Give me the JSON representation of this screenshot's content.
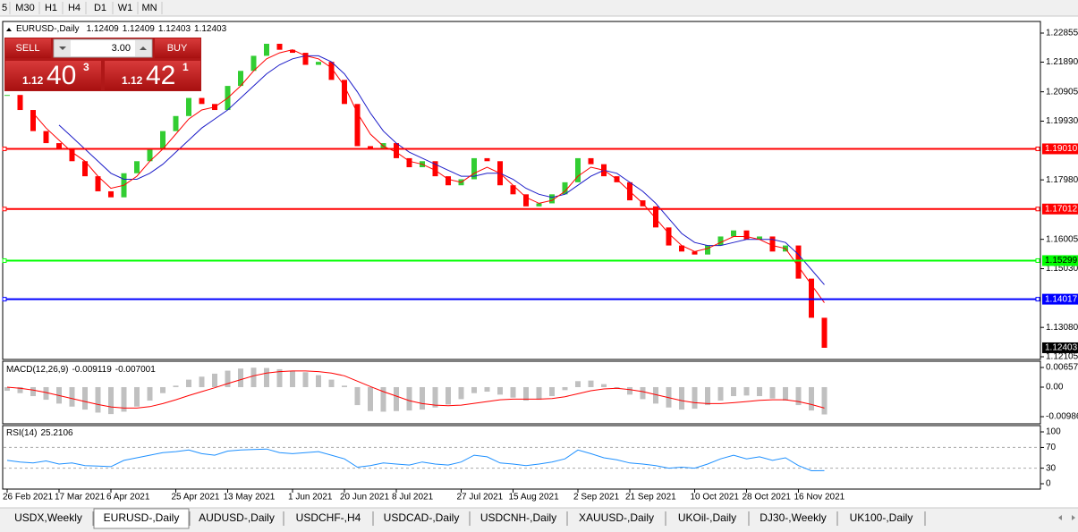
{
  "toolbar": {
    "timeframes": [
      "5",
      "M30",
      "H1",
      "H4",
      "D1",
      "W1",
      "MN"
    ]
  },
  "trade_panel": {
    "sell": "SELL",
    "buy": "BUY",
    "lot": "3.00",
    "bid": {
      "prefix": "1.12",
      "big": "40",
      "small": "3"
    },
    "ask": {
      "prefix": "1.12",
      "big": "42",
      "small": "1"
    }
  },
  "chart_data": [
    {
      "type": "candlestick",
      "symbol": "EURUSD-,Daily",
      "ohlc": [
        1.12409,
        1.12409,
        1.12403,
        1.12403
      ],
      "categories": [
        "26 Feb 2021",
        null,
        null,
        null,
        "17 Mar 2021",
        null,
        null,
        null,
        "6 Apr 2021",
        null,
        null,
        null,
        null,
        "25 Apr 2021",
        null,
        null,
        null,
        "13 May 2021",
        null,
        null,
        null,
        null,
        "1 Jun 2021",
        null,
        null,
        null,
        "20 Jun 2021",
        null,
        null,
        null,
        "8 Jul 2021",
        null,
        null,
        null,
        null,
        "27 Jul 2021",
        null,
        null,
        null,
        "15 Aug 2021",
        null,
        null,
        null,
        null,
        "2 Sep 2021",
        null,
        null,
        null,
        "21 Sep 2021",
        null,
        null,
        null,
        null,
        "10 Oct 2021",
        null,
        null,
        null,
        "28 Oct 2021",
        null,
        null,
        null,
        "16 Nov 2021",
        null,
        null
      ],
      "closes": [
        1.208,
        1.203,
        1.196,
        1.192,
        1.19,
        1.186,
        1.181,
        1.176,
        1.174,
        1.182,
        1.186,
        1.19,
        1.196,
        1.201,
        1.207,
        1.205,
        1.203,
        1.211,
        1.216,
        1.221,
        1.225,
        1.223,
        1.222,
        1.218,
        1.219,
        1.213,
        1.205,
        1.191,
        1.19,
        1.192,
        1.187,
        1.184,
        1.186,
        1.181,
        1.178,
        1.18,
        1.187,
        1.186,
        1.178,
        1.175,
        1.171,
        1.172,
        1.175,
        1.179,
        1.187,
        1.185,
        1.181,
        1.179,
        1.173,
        1.171,
        1.164,
        1.158,
        1.156,
        1.155,
        1.158,
        1.161,
        1.163,
        1.16,
        1.161,
        1.156,
        1.158,
        1.147,
        1.134,
        1.12403
      ],
      "up_color": "#32cd32",
      "down_color": "#ff0000",
      "ma_fast": {
        "color": "#ff0000",
        "values": [
          null,
          null,
          1.202,
          1.197,
          1.193,
          1.189,
          1.186,
          1.181,
          1.177,
          1.178,
          1.181,
          1.186,
          1.19,
          1.195,
          1.2,
          1.203,
          1.204,
          1.207,
          1.211,
          1.216,
          1.22,
          1.222,
          1.223,
          1.221,
          1.22,
          1.217,
          1.211,
          1.202,
          1.195,
          1.191,
          1.189,
          1.186,
          1.185,
          1.183,
          1.18,
          1.179,
          1.182,
          1.184,
          1.182,
          1.178,
          1.174,
          1.172,
          1.173,
          1.176,
          1.181,
          1.184,
          1.183,
          1.18,
          1.176,
          1.172,
          1.167,
          1.162,
          1.158,
          1.156,
          1.157,
          1.159,
          1.161,
          1.161,
          1.16,
          1.158,
          1.157,
          1.151,
          1.145,
          1.139
        ]
      },
      "ma_slow": {
        "color": "#1c1cc8",
        "values": [
          null,
          null,
          null,
          null,
          1.198,
          1.194,
          1.19,
          1.186,
          1.182,
          1.18,
          1.18,
          1.182,
          1.185,
          1.189,
          1.193,
          1.197,
          1.2,
          1.203,
          1.207,
          1.211,
          1.215,
          1.218,
          1.22,
          1.221,
          1.221,
          1.219,
          1.215,
          1.209,
          1.202,
          1.196,
          1.192,
          1.189,
          1.187,
          1.185,
          1.183,
          1.181,
          1.181,
          1.182,
          1.182,
          1.18,
          1.177,
          1.175,
          1.174,
          1.175,
          1.178,
          1.181,
          1.183,
          1.182,
          1.179,
          1.176,
          1.172,
          1.167,
          1.162,
          1.159,
          1.158,
          1.158,
          1.159,
          1.16,
          1.16,
          1.16,
          1.159,
          1.155,
          1.15,
          1.145
        ]
      },
      "levels": [
        {
          "value": 1.1901,
          "label": "1.19010",
          "color": "#ff0000"
        },
        {
          "value": 1.17012,
          "color": "#ff0000"
        },
        {
          "value": 1.15299,
          "color": "#00ff00"
        },
        {
          "value": 1.14017,
          "color": "#0000ff"
        }
      ],
      "ylim": [
        1.12016,
        1.23241
      ],
      "yticks": [
        1.22855,
        {
          "value": 1.2189,
          "label": "1.21890"
        },
        1.20905,
        {
          "value": 1.1993,
          "label": "1.19930"
        },
        {
          "value": 1.1798,
          "label": "1.17980"
        },
        1.16005,
        {
          "value": 1.1503,
          "label": "1.15030"
        },
        {
          "value": 1.1308,
          "label": "1.13080"
        },
        1.12105
      ]
    },
    {
      "type": "macd",
      "name": "MACD(12,26,9)",
      "histogram": {
        "color": "#c0c0c0",
        "values": [
          -0.0012,
          -0.002,
          -0.003,
          -0.0042,
          -0.0055,
          -0.0065,
          -0.0075,
          -0.0085,
          -0.009,
          -0.0082,
          -0.0065,
          -0.0045,
          -0.002,
          0.0005,
          0.0025,
          0.0035,
          0.0045,
          0.0055,
          0.0062,
          0.0065,
          0.0064,
          0.006,
          0.0055,
          0.005,
          0.004,
          0.0025,
          0.0005,
          -0.006,
          -0.008,
          -0.0082,
          -0.008,
          -0.0078,
          -0.0075,
          -0.0068,
          -0.0058,
          -0.004,
          -0.002,
          -0.0015,
          -0.0025,
          -0.0035,
          -0.0045,
          -0.0042,
          -0.003,
          -0.001,
          0.002,
          0.0022,
          0.001,
          -0.0005,
          -0.0025,
          -0.004,
          -0.0055,
          -0.0068,
          -0.0075,
          -0.0072,
          -0.006,
          -0.0045,
          -0.003,
          -0.0028,
          -0.003,
          -0.0038,
          -0.0045,
          -0.006,
          -0.0078,
          -0.009119
        ]
      },
      "signal": {
        "color": "#ff0000",
        "values": [
          0.0,
          -0.0004,
          -0.001,
          -0.0018,
          -0.0028,
          -0.0038,
          -0.0048,
          -0.0058,
          -0.0066,
          -0.007,
          -0.007,
          -0.0065,
          -0.0055,
          -0.0042,
          -0.0028,
          -0.0015,
          -0.0002,
          0.0012,
          0.0025,
          0.0038,
          0.0047,
          0.0052,
          0.0054,
          0.0054,
          0.0052,
          0.0047,
          0.0038,
          0.002,
          0.0002,
          -0.0015,
          -0.003,
          -0.0045,
          -0.0055,
          -0.006,
          -0.0062,
          -0.006,
          -0.0054,
          -0.0048,
          -0.0042,
          -0.004,
          -0.004,
          -0.004,
          -0.0038,
          -0.0032,
          -0.0022,
          -0.0012,
          -0.0006,
          -0.0004,
          -0.0008,
          -0.0015,
          -0.0025,
          -0.0035,
          -0.0045,
          -0.0052,
          -0.0055,
          -0.0055,
          -0.0052,
          -0.0048,
          -0.0044,
          -0.0042,
          -0.0042,
          -0.0048,
          -0.0058,
          -0.007001
        ]
      },
      "ylim": [
        -0.01225,
        0.00866
      ],
      "yticks": [
        0.00657,
        {
          "value": 0,
          "label": "0.00"
        },
        -0.00986
      ]
    },
    {
      "type": "line",
      "name": "RSI(14)",
      "color": "#1e90ff",
      "values": [
        45,
        42,
        40,
        44,
        38,
        40,
        35,
        34,
        33,
        45,
        50,
        55,
        60,
        62,
        65,
        58,
        55,
        63,
        65,
        66,
        67,
        60,
        58,
        60,
        62,
        55,
        48,
        32,
        35,
        40,
        38,
        36,
        42,
        38,
        36,
        42,
        55,
        52,
        40,
        38,
        35,
        38,
        42,
        48,
        65,
        58,
        50,
        46,
        40,
        38,
        35,
        30,
        32,
        30,
        38,
        48,
        55,
        48,
        52,
        45,
        50,
        35,
        25,
        25.2106
      ],
      "levels": [
        70,
        30
      ],
      "ylim": [
        -10.3,
        112.1
      ],
      "yticks": [
        100,
        70,
        30,
        0
      ]
    }
  ],
  "tabs": [
    "USDX,Weekly",
    "EURUSD-,Daily",
    "AUDUSD-,Daily",
    "USDCHF-,H4",
    "USDCAD-,Daily",
    "USDCNH-,Daily",
    "XAUUSD-,Daily",
    "UKOil-,Daily",
    "DJ30-,Weekly",
    "UK100-,Daily"
  ]
}
